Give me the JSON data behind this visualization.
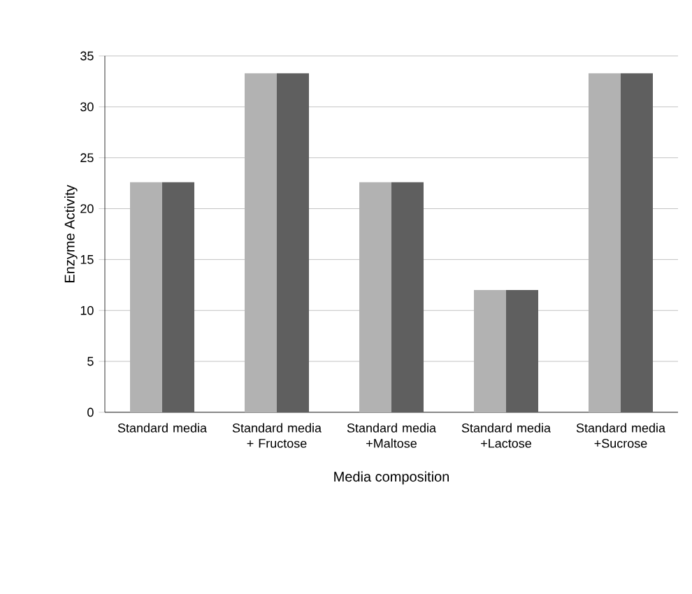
{
  "chart_data": {
    "type": "bar",
    "xlabel": "Media composition",
    "ylabel": "Enzyme Activity",
    "categories": [
      "Standard media",
      "Standard media + Fructose",
      "Standard media +Maltose",
      "Standard media +Lactose",
      "Standard media +Sucrose"
    ],
    "series": [
      {
        "color": "#b2b2b2",
        "values": [
          22.6,
          33.3,
          22.6,
          12,
          33.3
        ]
      },
      {
        "color": "#5f5f5f",
        "values": [
          22.6,
          33.3,
          22.6,
          12,
          33.3
        ]
      }
    ],
    "ylim": [
      0,
      35
    ],
    "yticks": [
      0,
      5,
      10,
      15,
      20,
      25,
      30,
      35
    ],
    "grid": "y"
  }
}
